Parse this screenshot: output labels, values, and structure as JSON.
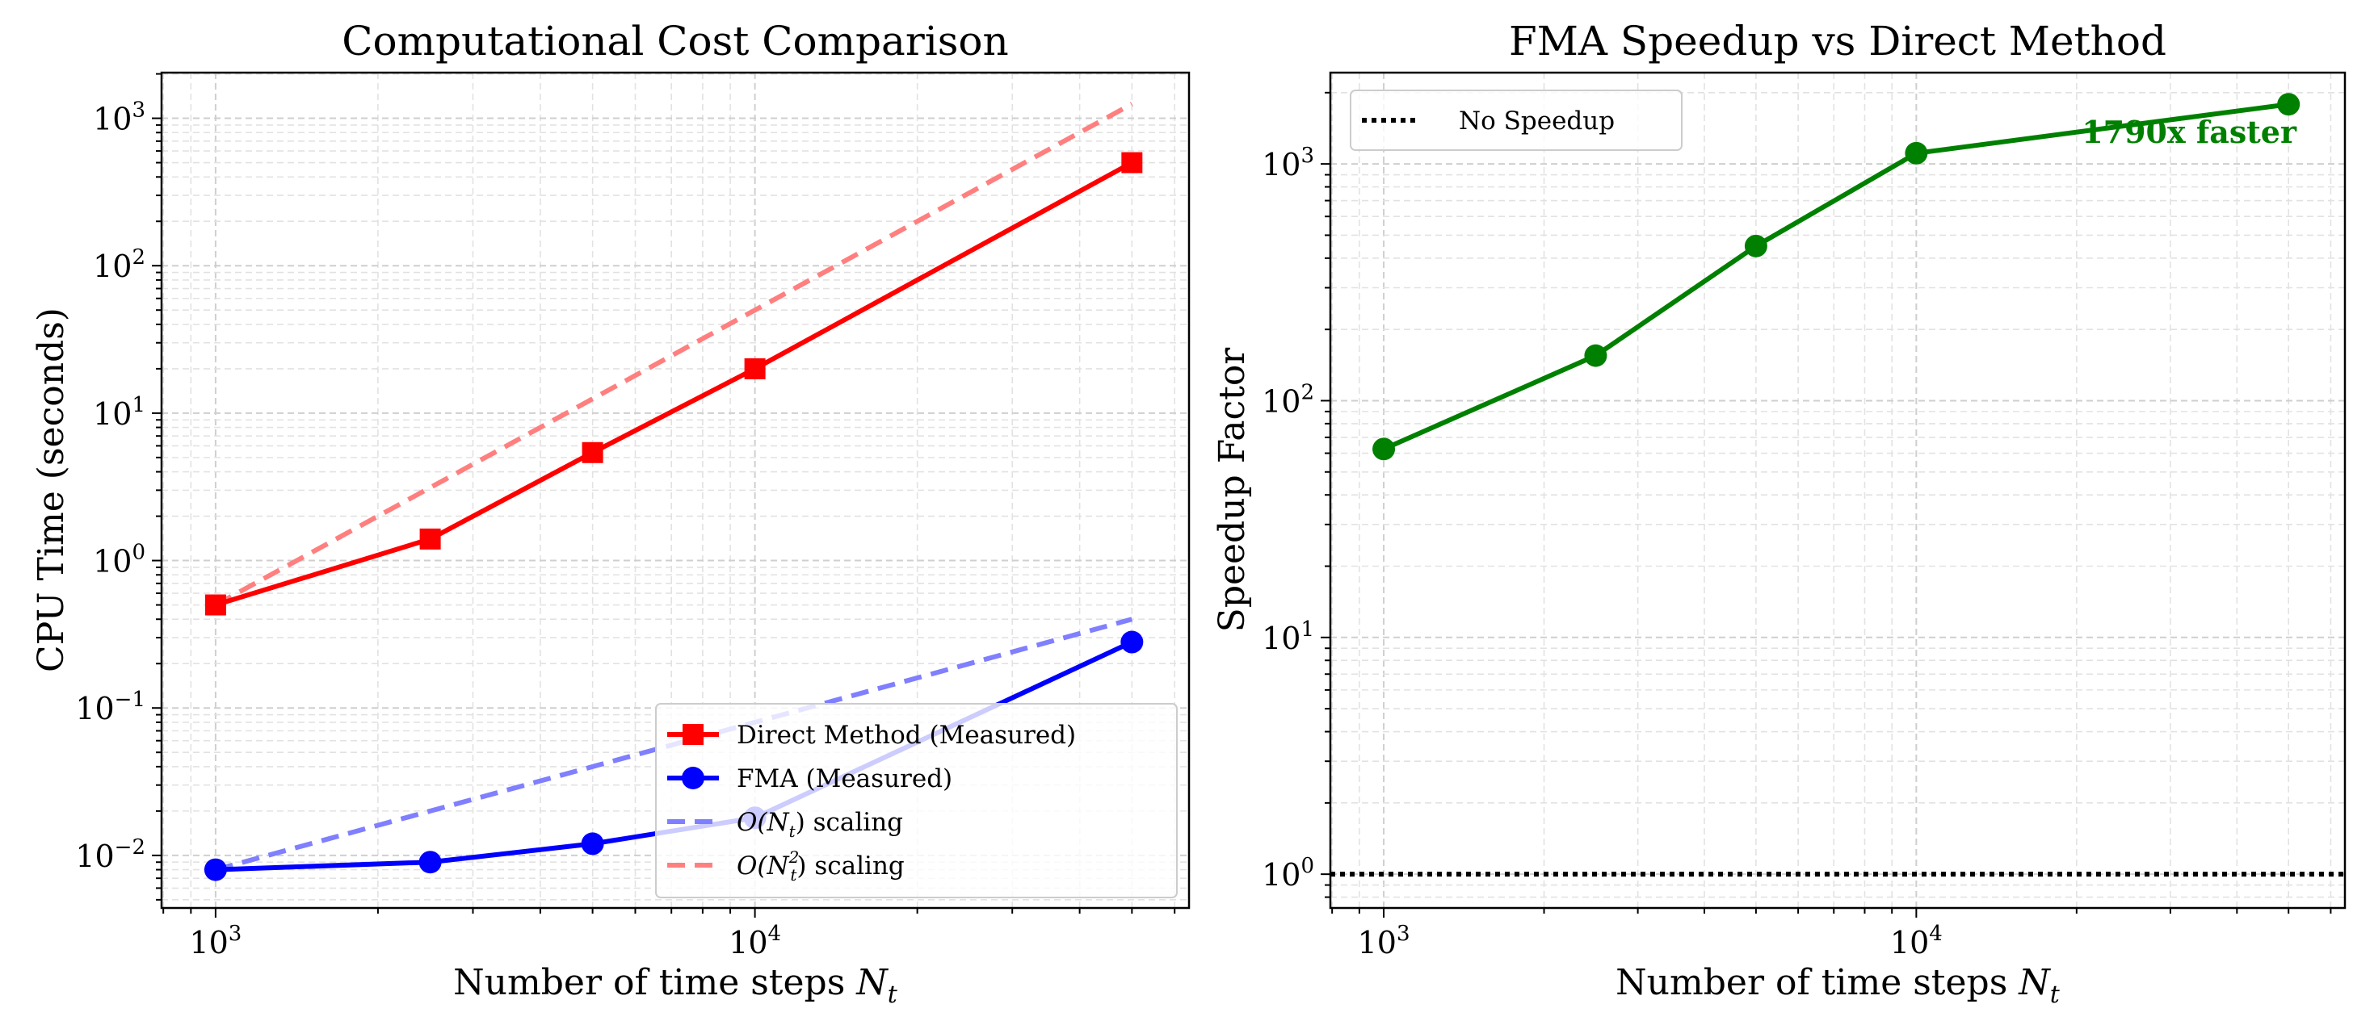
{
  "chart_data": [
    {
      "type": "line",
      "title": "Computational Cost Comparison",
      "xlabel": "Number of time steps N_t",
      "xlabel_text": "Number of time steps ",
      "xlabel_math": "N",
      "xlabel_sub": "t",
      "ylabel": "CPU Time (seconds)",
      "xscale": "log",
      "yscale": "log",
      "xlim": [
        794,
        63800
      ],
      "ylim": [
        0.0044,
        2040
      ],
      "grid": true,
      "xticks": [
        {
          "v": 1000,
          "base": "10",
          "exp": "3"
        },
        {
          "v": 10000,
          "base": "10",
          "exp": "4"
        }
      ],
      "yticks": [
        {
          "v": 0.01,
          "base": "10",
          "exp": "−2"
        },
        {
          "v": 0.1,
          "base": "10",
          "exp": "−1"
        },
        {
          "v": 1,
          "base": "10",
          "exp": "0"
        },
        {
          "v": 10,
          "base": "10",
          "exp": "1"
        },
        {
          "v": 100,
          "base": "10",
          "exp": "2"
        },
        {
          "v": 1000,
          "base": "10",
          "exp": "3"
        }
      ],
      "x": [
        1000,
        2500,
        5000,
        10000,
        50000
      ],
      "series": [
        {
          "name": "O(N_t^2) scaling",
          "label_pre": "O(N",
          "label_sub": "t",
          "label_sup": "2",
          "label_post": ") scaling",
          "values": [
            0.5,
            3.125,
            12.5,
            50,
            1250
          ],
          "color": "#ff7f7f",
          "style": "dashed",
          "marker": "none"
        },
        {
          "name": "O(N_t) scaling",
          "label_pre": "O(N",
          "label_sub": "t",
          "label_sup": "",
          "label_post": ") scaling",
          "values": [
            0.008,
            0.02,
            0.04,
            0.08,
            0.4
          ],
          "color": "#7f7fff",
          "style": "dashed",
          "marker": "none"
        },
        {
          "name": "Direct Method (Measured)",
          "label": "Direct Method (Measured)",
          "values": [
            0.5,
            1.4,
            5.4,
            20,
            500
          ],
          "color": "#ff0000",
          "style": "solid",
          "marker": "square"
        },
        {
          "name": "FMA (Measured)",
          "label": "FMA (Measured)",
          "values": [
            0.008,
            0.009,
            0.012,
            0.018,
            0.28
          ],
          "color": "#0000ff",
          "style": "solid",
          "marker": "circle"
        }
      ],
      "legend_order": [
        2,
        3,
        1,
        0
      ],
      "legend_position": "lower-right"
    },
    {
      "type": "line",
      "title": "FMA Speedup vs Direct Method",
      "xlabel": "Number of time steps N_t",
      "xlabel_text": "Number of time steps ",
      "xlabel_math": "N",
      "xlabel_sub": "t",
      "ylabel": "Speedup Factor",
      "xscale": "log",
      "yscale": "log",
      "xlim": [
        794,
        63800
      ],
      "ylim": [
        0.72,
        2430
      ],
      "grid": true,
      "xticks": [
        {
          "v": 1000,
          "base": "10",
          "exp": "3"
        },
        {
          "v": 10000,
          "base": "10",
          "exp": "4"
        }
      ],
      "yticks": [
        {
          "v": 1,
          "base": "10",
          "exp": "0"
        },
        {
          "v": 10,
          "base": "10",
          "exp": "1"
        },
        {
          "v": 100,
          "base": "10",
          "exp": "2"
        },
        {
          "v": 1000,
          "base": "10",
          "exp": "3"
        }
      ],
      "x": [
        1000,
        2500,
        5000,
        10000,
        50000
      ],
      "series": [
        {
          "name": "FMA speedup",
          "values": [
            62.5,
            155,
            450,
            1110,
            1786
          ],
          "color": "#008000",
          "style": "solid",
          "marker": "circle"
        }
      ],
      "reference_line": {
        "name": "No Speedup",
        "label": "No Speedup",
        "value": 1,
        "color": "#000000",
        "style": "dotted"
      },
      "annotation": {
        "text": "1790x faster",
        "color": "#008000"
      },
      "legend_position": "upper-left"
    }
  ]
}
